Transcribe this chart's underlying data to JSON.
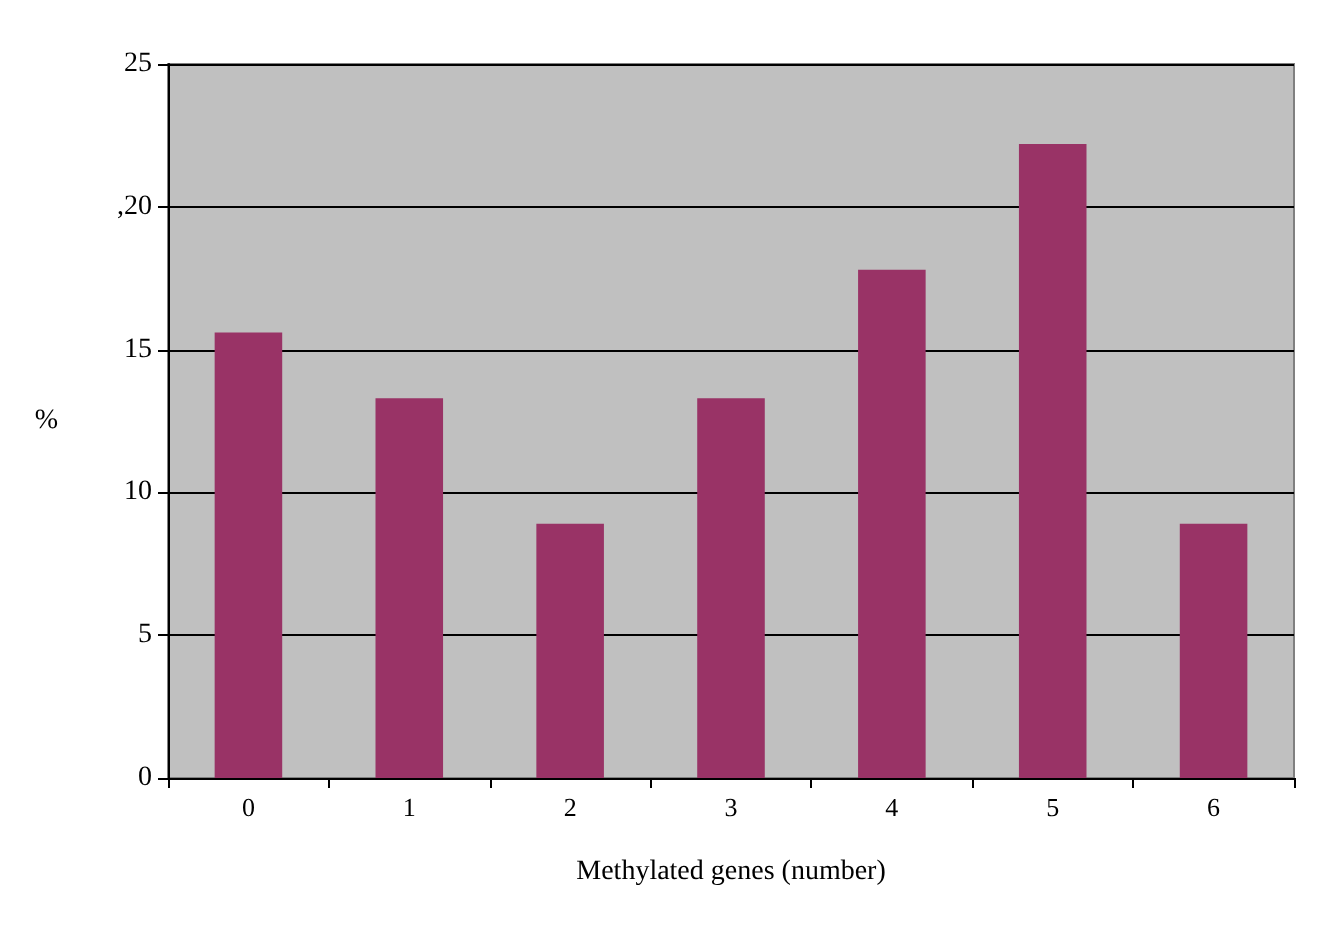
{
  "chart_data": {
    "type": "bar",
    "xlabel": "Methylated genes (number)",
    "ylabel": "%",
    "categories": [
      "0",
      "1",
      "2",
      "3",
      "4",
      "5",
      "6"
    ],
    "values": [
      15.6,
      13.3,
      8.9,
      13.3,
      17.8,
      22.2,
      8.9
    ],
    "color": "#993366",
    "ylim": [
      0,
      25
    ],
    "yticks": [
      0,
      5,
      10,
      15,
      {
        "value": 20,
        "label": ",20"
      },
      25
    ],
    "grid": "y"
  }
}
